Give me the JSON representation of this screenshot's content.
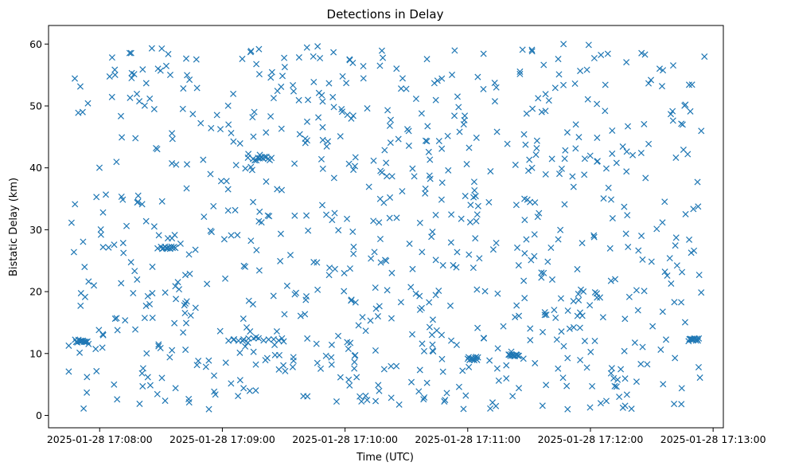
{
  "chart_data": {
    "type": "scatter",
    "title": "Detections in Delay",
    "xlabel": "Time (UTC)",
    "ylabel": "Bistatic Delay (km)",
    "x_tick_labels": [
      "2025-01-28 17:08:00",
      "2025-01-28 17:09:00",
      "2025-01-28 17:10:00",
      "2025-01-28 17:11:00",
      "2025-01-28 17:12:00",
      "2025-01-28 17:13:00"
    ],
    "y_tick_labels": [
      "0",
      "10",
      "20",
      "30",
      "40",
      "50",
      "60"
    ],
    "x_range": [
      "2025-01-28 17:07:44",
      "2025-01-28 17:12:56"
    ],
    "xlim": [
      "2025-01-28 17:07:35",
      "2025-01-28 17:13:05"
    ],
    "ylim": [
      -2,
      63
    ],
    "grid": false,
    "marker": "x",
    "color": "#1f77b4",
    "point_count": 900,
    "series": [
      {
        "values_note_excluded": true,
        "clusters": [
          {
            "start": "2025-01-28 17:07:48",
            "end": "2025-01-28 17:07:54",
            "y": 12.0
          },
          {
            "start": "2025-01-28 17:09:03",
            "end": "2025-01-28 17:09:30",
            "y": 12.2
          },
          {
            "start": "2025-01-28 17:11:00",
            "end": "2025-01-28 17:11:05",
            "y": 9.2
          },
          {
            "start": "2025-01-28 17:11:20",
            "end": "2025-01-28 17:11:25",
            "y": 9.8
          },
          {
            "start": "2025-01-28 17:12:48",
            "end": "2025-01-28 17:12:53",
            "y": 12.2
          },
          {
            "start": "2025-01-28 17:08:30",
            "end": "2025-01-28 17:08:37",
            "y": 27.0
          },
          {
            "start": "2025-01-28 17:09:15",
            "end": "2025-01-28 17:09:24",
            "y": 41.5
          }
        ]
      }
    ]
  }
}
